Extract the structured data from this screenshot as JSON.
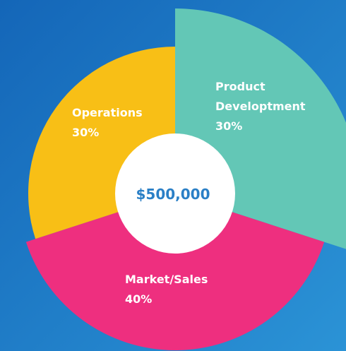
{
  "chart_data": {
    "type": "pie",
    "center_label": "$500,000",
    "categories": [
      "Product Developtment",
      "Market/Sales",
      "Operations"
    ],
    "values": [
      30,
      40,
      30
    ],
    "value_labels": [
      "30%",
      "40%",
      "30%"
    ],
    "colors": [
      "#63c7b6",
      "#ee2f7f",
      "#f8bf16"
    ]
  }
}
